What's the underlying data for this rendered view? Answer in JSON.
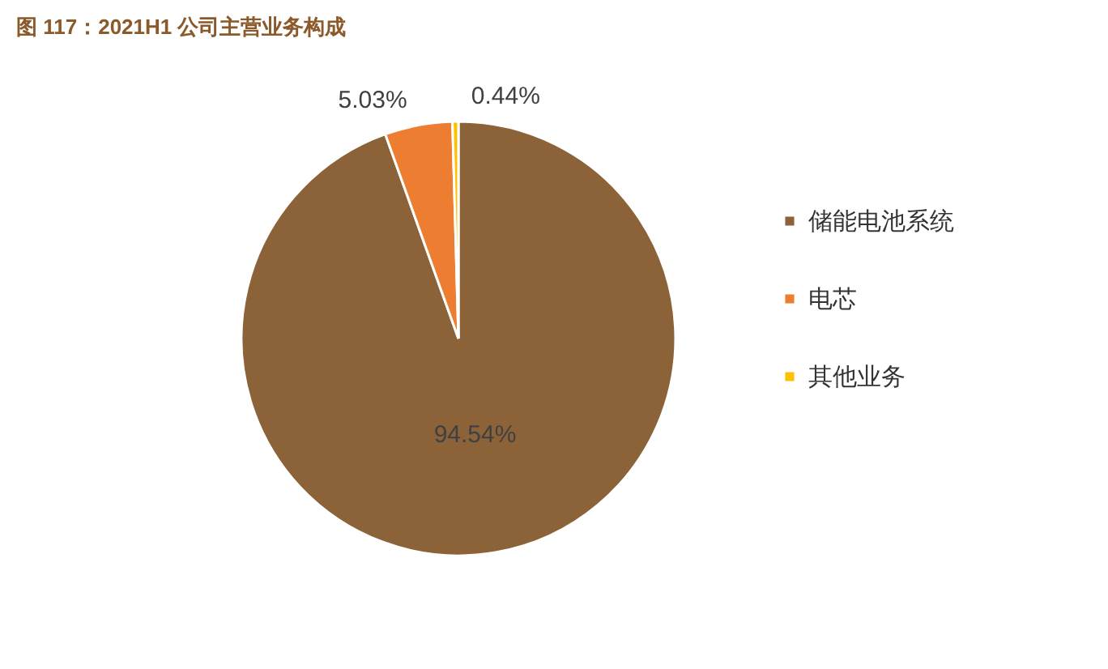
{
  "chart_data": {
    "type": "pie",
    "title": "图 117：2021H1 公司主营业务构成",
    "categories": [
      "储能电池系统",
      "电芯",
      "其他业务"
    ],
    "values": [
      94.54,
      5.03,
      0.44
    ],
    "colors": [
      "#8c6239",
      "#ed7d31",
      "#ffc000"
    ],
    "value_labels": [
      "94.54%",
      "5.03%",
      "0.44%"
    ],
    "legend": "right"
  }
}
